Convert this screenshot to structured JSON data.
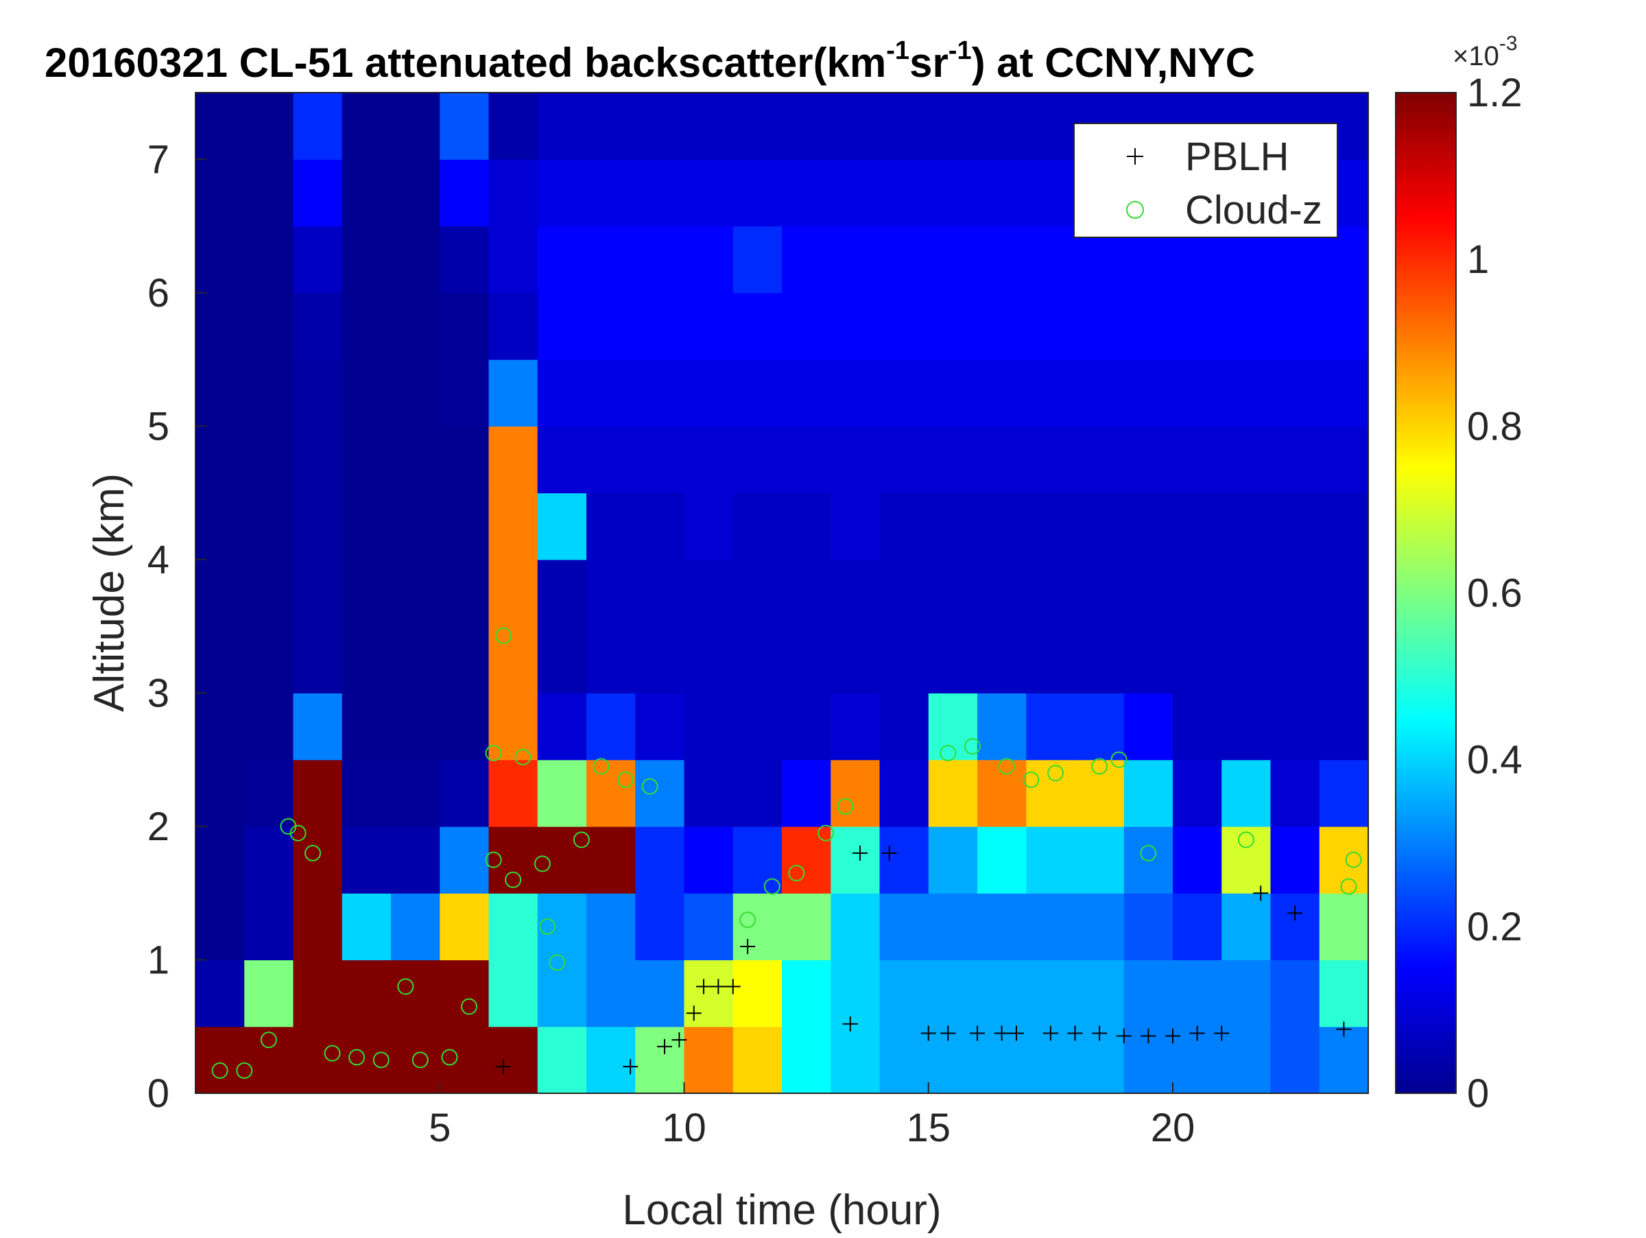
{
  "chart_data": {
    "type": "heatmap",
    "title_parts": [
      "20160321  CL-51 attenuated backscatter(km",
      "-1",
      "sr",
      "-1",
      ") at CCNY,NYC"
    ],
    "x_label": "Local time (hour)",
    "y_label": "Altitude (km)",
    "xlim": [
      0,
      24
    ],
    "ylim": [
      0,
      7.5
    ],
    "xticks": [
      5,
      10,
      15,
      20
    ],
    "yticks": [
      0,
      1,
      2,
      3,
      4,
      5,
      6,
      7
    ],
    "colormap": "jet",
    "clim": [
      0,
      1.2
    ],
    "cticks": [
      0,
      0.2,
      0.4,
      0.6,
      0.8,
      1,
      1.2
    ],
    "colorbar_multiplier": {
      "base": "×10",
      "exponent": "-3"
    },
    "x_bins": [
      0,
      1,
      2,
      3,
      4,
      5,
      6,
      7,
      8,
      9,
      10,
      11,
      12,
      13,
      14,
      15,
      16,
      17,
      18,
      19,
      20,
      21,
      22,
      23,
      24
    ],
    "y_bins": [
      0,
      0.5,
      1,
      1.5,
      2,
      2.5,
      3,
      3.5,
      4,
      4.5,
      5,
      5.5,
      6,
      6.5,
      7,
      7.5
    ],
    "z": [
      [
        1.2,
        1.2,
        1.2,
        1.2,
        1.2,
        1.2,
        1.2,
        0.5,
        0.4,
        0.6,
        0.9,
        0.8,
        0.45,
        0.4,
        0.35,
        0.35,
        0.35,
        0.35,
        0.35,
        0.3,
        0.3,
        0.3,
        0.25,
        0.3
      ],
      [
        0.05,
        0.6,
        1.2,
        1.2,
        1.2,
        1.2,
        0.5,
        0.35,
        0.3,
        0.3,
        0.7,
        0.75,
        0.45,
        0.4,
        0.35,
        0.35,
        0.35,
        0.35,
        0.35,
        0.3,
        0.3,
        0.3,
        0.25,
        0.5
      ],
      [
        0.02,
        0.05,
        1.2,
        0.4,
        0.3,
        0.8,
        0.5,
        0.35,
        0.3,
        0.2,
        0.25,
        0.6,
        0.6,
        0.4,
        0.3,
        0.3,
        0.3,
        0.3,
        0.3,
        0.25,
        0.2,
        0.35,
        0.2,
        0.6
      ],
      [
        0.02,
        0.05,
        1.2,
        0.05,
        0.05,
        0.3,
        1.2,
        1.2,
        1.2,
        0.2,
        0.15,
        0.2,
        1.0,
        0.5,
        0.2,
        0.35,
        0.45,
        0.4,
        0.4,
        0.3,
        0.15,
        0.7,
        0.15,
        0.8
      ],
      [
        0.02,
        0.03,
        1.2,
        0.03,
        0.03,
        0.05,
        1.0,
        0.6,
        0.9,
        0.3,
        0.08,
        0.08,
        0.15,
        0.9,
        0.1,
        0.8,
        0.9,
        0.8,
        0.8,
        0.4,
        0.1,
        0.4,
        0.1,
        0.2
      ],
      [
        0.02,
        0.02,
        0.3,
        0.02,
        0.02,
        0.02,
        0.9,
        0.1,
        0.2,
        0.1,
        0.08,
        0.08,
        0.08,
        0.1,
        0.08,
        0.5,
        0.3,
        0.2,
        0.2,
        0.15,
        0.08,
        0.08,
        0.08,
        0.08
      ],
      [
        0.02,
        0.02,
        0.04,
        0.02,
        0.02,
        0.02,
        0.9,
        0.06,
        0.08,
        0.08,
        0.08,
        0.08,
        0.08,
        0.08,
        0.08,
        0.08,
        0.08,
        0.08,
        0.08,
        0.08,
        0.08,
        0.08,
        0.08,
        0.08
      ],
      [
        0.02,
        0.02,
        0.04,
        0.02,
        0.02,
        0.02,
        0.9,
        0.06,
        0.08,
        0.08,
        0.08,
        0.08,
        0.08,
        0.08,
        0.08,
        0.08,
        0.08,
        0.08,
        0.08,
        0.08,
        0.08,
        0.08,
        0.08,
        0.08
      ],
      [
        0.02,
        0.02,
        0.04,
        0.02,
        0.02,
        0.02,
        0.9,
        0.4,
        0.08,
        0.08,
        0.1,
        0.08,
        0.08,
        0.1,
        0.08,
        0.08,
        0.08,
        0.08,
        0.08,
        0.08,
        0.08,
        0.08,
        0.08,
        0.08
      ],
      [
        0.02,
        0.02,
        0.04,
        0.02,
        0.02,
        0.02,
        0.9,
        0.1,
        0.1,
        0.1,
        0.1,
        0.1,
        0.1,
        0.1,
        0.1,
        0.1,
        0.1,
        0.1,
        0.1,
        0.1,
        0.1,
        0.1,
        0.1,
        0.1
      ],
      [
        0.02,
        0.02,
        0.04,
        0.02,
        0.02,
        0.03,
        0.3,
        0.12,
        0.12,
        0.12,
        0.12,
        0.12,
        0.12,
        0.12,
        0.12,
        0.12,
        0.12,
        0.12,
        0.12,
        0.12,
        0.12,
        0.12,
        0.12,
        0.12
      ],
      [
        0.02,
        0.02,
        0.05,
        0.02,
        0.02,
        0.03,
        0.08,
        0.15,
        0.15,
        0.15,
        0.15,
        0.15,
        0.15,
        0.15,
        0.15,
        0.15,
        0.15,
        0.15,
        0.15,
        0.15,
        0.15,
        0.15,
        0.15,
        0.15
      ],
      [
        0.02,
        0.02,
        0.08,
        0.02,
        0.02,
        0.05,
        0.1,
        0.15,
        0.15,
        0.15,
        0.15,
        0.2,
        0.15,
        0.15,
        0.15,
        0.15,
        0.15,
        0.15,
        0.15,
        0.15,
        0.15,
        0.15,
        0.15,
        0.15
      ],
      [
        0.02,
        0.02,
        0.15,
        0.02,
        0.02,
        0.15,
        0.1,
        0.12,
        0.12,
        0.12,
        0.12,
        0.12,
        0.12,
        0.12,
        0.12,
        0.12,
        0.12,
        0.12,
        0.12,
        0.12,
        0.12,
        0.12,
        0.12,
        0.12
      ],
      [
        0.02,
        0.02,
        0.2,
        0.02,
        0.02,
        0.25,
        0.05,
        0.08,
        0.08,
        0.08,
        0.08,
        0.08,
        0.08,
        0.08,
        0.08,
        0.08,
        0.08,
        0.08,
        0.08,
        0.08,
        0.08,
        0.08,
        0.08,
        0.08
      ]
    ],
    "series": [
      {
        "name": "PBLH",
        "color": "#000000",
        "marker": "plus",
        "x": [
          6.3,
          8.9,
          9.6,
          9.9,
          10.2,
          10.4,
          10.7,
          11.0,
          11.3,
          13.4,
          13.6,
          14.2,
          15.0,
          15.4,
          16.0,
          16.5,
          16.8,
          17.5,
          18.0,
          18.5,
          19.0,
          19.5,
          20.0,
          20.5,
          21.0,
          21.8,
          22.5,
          23.5
        ],
        "values": [
          0.2,
          0.2,
          0.35,
          0.4,
          0.6,
          0.8,
          0.8,
          0.8,
          1.1,
          0.52,
          1.8,
          1.8,
          0.45,
          0.45,
          0.45,
          0.45,
          0.45,
          0.45,
          0.45,
          0.45,
          0.43,
          0.43,
          0.43,
          0.45,
          0.45,
          1.5,
          1.35,
          0.48
        ]
      },
      {
        "name": "Cloud-z",
        "color": "#33dd33",
        "marker": "circle",
        "x": [
          0.5,
          1.0,
          1.5,
          1.9,
          2.1,
          2.4,
          2.8,
          3.3,
          3.8,
          4.3,
          4.6,
          5.2,
          5.6,
          6.1,
          6.3,
          6.1,
          6.7,
          6.5,
          7.2,
          7.4,
          7.1,
          7.9,
          8.3,
          8.8,
          9.3,
          11.3,
          11.8,
          12.3,
          12.9,
          13.3,
          15.4,
          15.9,
          16.6,
          17.1,
          17.6,
          18.5,
          18.9,
          19.5,
          21.5,
          23.6,
          23.7
        ],
        "values": [
          0.17,
          0.17,
          0.4,
          2.0,
          1.95,
          1.8,
          0.3,
          0.27,
          0.25,
          0.8,
          0.25,
          0.27,
          0.65,
          1.75,
          3.43,
          2.55,
          2.52,
          1.6,
          1.25,
          0.98,
          1.72,
          1.9,
          2.45,
          2.35,
          2.3,
          1.3,
          1.55,
          1.65,
          1.95,
          2.15,
          2.55,
          2.6,
          2.45,
          2.35,
          2.4,
          2.45,
          2.5,
          1.8,
          1.9,
          1.55,
          1.75
        ]
      }
    ]
  }
}
